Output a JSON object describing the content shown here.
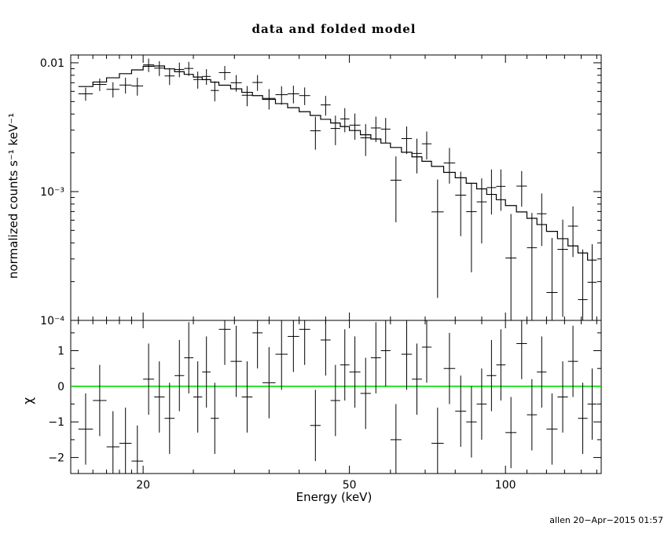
{
  "chart_data": {
    "type": "line",
    "title": "data and folded model",
    "xlabel": "Energy (keV)",
    "ylabel_top": "normalized counts s⁻¹ keV⁻¹",
    "ylabel_bottom": "χ",
    "annotation": "allen 20−Apr−2015 01:57",
    "x_scale": "log",
    "x_range": [
      14.5,
      153
    ],
    "x_major_ticks": [
      20,
      50,
      100
    ],
    "x_major_tick_labels": [
      "20",
      "50",
      "100"
    ],
    "x_minor_ticks": [
      15,
      16,
      17,
      18,
      19,
      25,
      30,
      35,
      40,
      45,
      60,
      70,
      80,
      90,
      110,
      120,
      130,
      140,
      150
    ],
    "top_panel": {
      "y_scale": "log",
      "y_range": [
        0.0001,
        0.0115
      ],
      "major_ticks": [
        0.0001,
        0.001,
        0.01
      ],
      "tick_labels": [
        "10⁻⁴",
        "10⁻³",
        "0.01"
      ]
    },
    "bottom_panel": {
      "y_scale": "linear",
      "y_range": [
        -2.45,
        1.85
      ],
      "major_ticks": [
        -2,
        -1,
        0,
        1
      ],
      "tick_labels": [
        "−2",
        "−1",
        "0",
        "1"
      ],
      "minor_ticks": [
        -1.5,
        -0.5,
        0.5,
        1.5
      ],
      "zero_line_color": "#00dd00",
      "chi_error": 1
    },
    "colors": {
      "data": "#000000",
      "model": "#000000"
    },
    "bins_format": [
      "e_lo_keV",
      "e_hi_keV",
      "model_counts",
      "rel_err",
      "chi"
    ],
    "bins": [
      [
        15,
        16,
        0.00654,
        0.102,
        -1.2
      ],
      [
        16,
        17,
        0.00709,
        0.106,
        -0.4
      ],
      [
        17,
        18,
        0.00765,
        0.11,
        -1.7
      ],
      [
        18,
        19,
        0.00823,
        0.115,
        -1.6
      ],
      [
        19,
        20,
        0.00881,
        0.119,
        -2.1
      ],
      [
        20,
        21,
        0.0094,
        0.123,
        0.2
      ],
      [
        21,
        22,
        0.00945,
        0.127,
        -0.3
      ],
      [
        22,
        23,
        0.00897,
        0.132,
        -0.9
      ],
      [
        23,
        24,
        0.00853,
        0.136,
        0.3
      ],
      [
        24,
        25,
        0.00813,
        0.14,
        0.8
      ],
      [
        25,
        26,
        0.00775,
        0.144,
        -0.3
      ],
      [
        26,
        27,
        0.0074,
        0.148,
        0.4
      ],
      [
        27,
        28,
        0.00707,
        0.153,
        -0.9
      ],
      [
        28,
        29.5,
        0.0067,
        0.158,
        1.6
      ],
      [
        29.5,
        31,
        0.00628,
        0.164,
        0.7
      ],
      [
        31,
        32.5,
        0.0059,
        0.17,
        -0.3
      ],
      [
        32.5,
        34,
        0.00556,
        0.177,
        1.5
      ],
      [
        34,
        36,
        0.0052,
        0.184,
        0.1
      ],
      [
        36,
        38,
        0.00482,
        0.192,
        0.9
      ],
      [
        38,
        40,
        0.00448,
        0.201,
        1.4
      ],
      [
        40,
        42,
        0.00417,
        0.209,
        1.6
      ],
      [
        42,
        44,
        0.0039,
        0.218,
        -1.1
      ],
      [
        44,
        46,
        0.00364,
        0.226,
        1.3
      ],
      [
        46,
        48,
        0.00341,
        0.234,
        -0.4
      ],
      [
        48,
        50,
        0.0032,
        0.243,
        0.6
      ],
      [
        50,
        52.5,
        0.00298,
        0.252,
        0.4
      ],
      [
        52.5,
        55,
        0.00276,
        0.263,
        -0.2
      ],
      [
        55,
        57.5,
        0.00256,
        0.273,
        0.8
      ],
      [
        57.5,
        60,
        0.00238,
        0.284,
        1.0
      ],
      [
        60,
        63,
        0.0022,
        0.295,
        -1.5
      ],
      [
        63,
        66,
        0.00202,
        0.308,
        0.9
      ],
      [
        66,
        69,
        0.00186,
        0.32,
        0.2
      ],
      [
        69,
        72,
        0.00172,
        0.333,
        1.1
      ],
      [
        72,
        76,
        0.00157,
        0.348,
        -1.6
      ],
      [
        76,
        80,
        0.00141,
        0.365,
        0.5
      ],
      [
        80,
        84,
        0.00128,
        0.381,
        -0.7
      ],
      [
        84,
        88,
        0.00116,
        0.398,
        -1.0
      ],
      [
        88,
        92,
        0.00105,
        0.415,
        -0.5
      ],
      [
        92,
        96,
        0.000951,
        0.432,
        0.3
      ],
      [
        96,
        100,
        0.000865,
        0.449,
        0.6
      ],
      [
        100,
        105,
        0.000779,
        0.468,
        -1.3
      ],
      [
        105,
        110,
        0.000695,
        0.489,
        1.2
      ],
      [
        110,
        115,
        0.00062,
        0.51,
        -0.8
      ],
      [
        115,
        120,
        0.000555,
        0.531,
        0.4
      ],
      [
        120,
        126,
        0.000491,
        0.554,
        -1.2
      ],
      [
        126,
        132,
        0.000431,
        0.579,
        -0.3
      ],
      [
        132,
        138,
        0.000379,
        0.604,
        0.7
      ],
      [
        138,
        144,
        0.000334,
        0.629,
        -0.9
      ],
      [
        144,
        150,
        0.000294,
        0.654,
        -0.5
      ]
    ]
  }
}
